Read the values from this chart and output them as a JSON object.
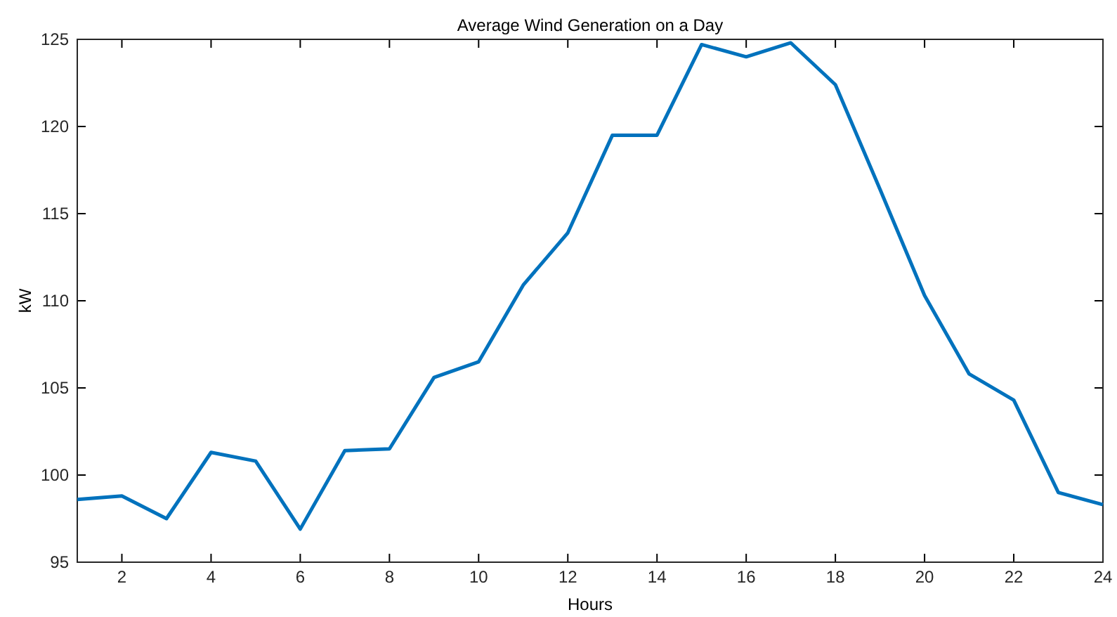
{
  "chart_data": {
    "type": "line",
    "title": "Average Wind Generation on a Day",
    "xlabel": "Hours",
    "ylabel": "kW",
    "x": [
      1,
      2,
      3,
      4,
      5,
      6,
      7,
      8,
      9,
      10,
      11,
      12,
      13,
      14,
      15,
      16,
      17,
      18,
      19,
      20,
      21,
      22,
      23,
      24
    ],
    "series": [
      {
        "color": "#0072bd",
        "values": [
          98.6,
          98.8,
          97.5,
          101.3,
          100.8,
          96.9,
          101.4,
          101.5,
          105.6,
          106.5,
          110.9,
          113.9,
          119.5,
          119.5,
          124.7,
          124.0,
          124.8,
          122.4,
          116.4,
          110.3,
          105.8,
          104.3,
          99.0,
          98.3
        ]
      }
    ],
    "xlim": [
      1,
      24
    ],
    "xticks": [
      2,
      4,
      6,
      8,
      10,
      12,
      14,
      16,
      18,
      20,
      22,
      24
    ],
    "ylim": [
      95,
      125
    ],
    "yticks": [
      95,
      100,
      105,
      110,
      115,
      120,
      125
    ],
    "grid": false,
    "marker": "none",
    "line_style": "solid"
  }
}
